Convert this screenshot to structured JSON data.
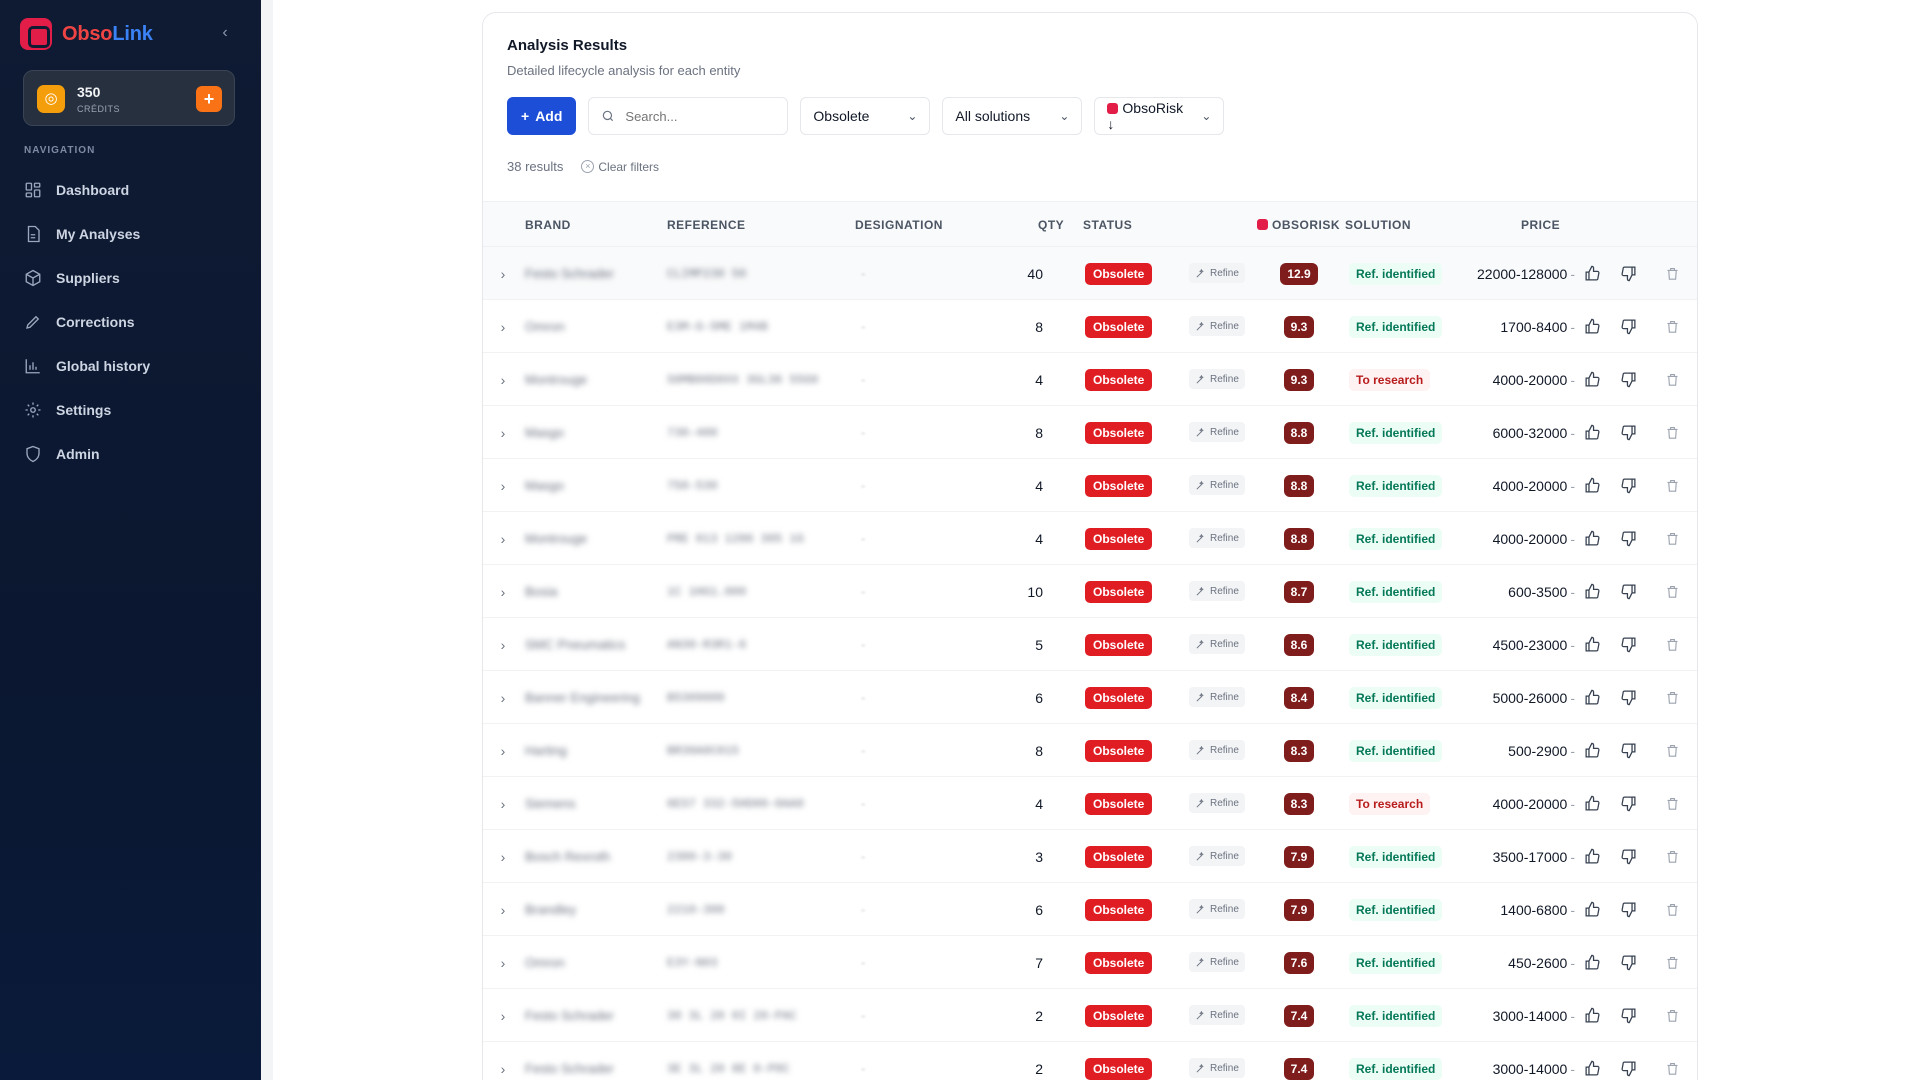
{
  "brand": {
    "part1": "Obso",
    "part2": "Link"
  },
  "credits": {
    "value": "350",
    "label": "CRÉDITS",
    "add_label": "+"
  },
  "nav": {
    "heading": "NAVIGATION",
    "items": [
      {
        "label": "Dashboard",
        "icon": "dashboard-icon"
      },
      {
        "label": "My Analyses",
        "icon": "document-icon"
      },
      {
        "label": "Suppliers",
        "icon": "box-icon"
      },
      {
        "label": "Corrections",
        "icon": "pencil-icon"
      },
      {
        "label": "Global history",
        "icon": "chart-icon"
      },
      {
        "label": "Settings",
        "icon": "gear-icon"
      },
      {
        "label": "Admin",
        "icon": "shield-icon"
      }
    ]
  },
  "card": {
    "title": "Analysis Results",
    "subtitle": "Detailed lifecycle analysis for each entity"
  },
  "toolbar": {
    "add_label": "Add",
    "search_placeholder": "Search...",
    "status_filter": "Obsolete",
    "solution_filter": "All solutions",
    "sort_label": "ObsoRisk ↓"
  },
  "results": {
    "count_text": "38 results",
    "clear_label": "Clear filters"
  },
  "table": {
    "headers": {
      "brand": "BRAND",
      "reference": "REFERENCE",
      "designation": "DESIGNATION",
      "qty": "QTY",
      "status": "STATUS",
      "obsorisk": "OBSORISK",
      "solution": "SOLUTION",
      "price": "PRICE"
    },
    "refine_label": "Refine",
    "rows": [
      {
        "brand": "Festo Schrader",
        "reference": "CLIMP230 50",
        "designation": "-",
        "qty": "40",
        "status": "Obsolete",
        "risk": "12.9",
        "solution": "Ref. identified",
        "solution_kind": "ok",
        "price": "22000-128000"
      },
      {
        "brand": "Omron",
        "reference": "E3M-G-5ME 1M4B",
        "designation": "-",
        "qty": "8",
        "status": "Obsolete",
        "risk": "9.3",
        "solution": "Ref. identified",
        "solution_kind": "ok",
        "price": "1700-8400"
      },
      {
        "brand": "Montrouge",
        "reference": "S0MB00D0XX 3GL36 55G9",
        "designation": "-",
        "qty": "4",
        "status": "Obsolete",
        "risk": "9.3",
        "solution": "To research",
        "solution_kind": "research",
        "price": "4000-20000"
      },
      {
        "brand": "Masgo",
        "reference": "730-400",
        "designation": "-",
        "qty": "8",
        "status": "Obsolete",
        "risk": "8.8",
        "solution": "Ref. identified",
        "solution_kind": "ok",
        "price": "6000-32000"
      },
      {
        "brand": "Masgo",
        "reference": "750-530",
        "designation": "-",
        "qty": "4",
        "status": "Obsolete",
        "risk": "8.8",
        "solution": "Ref. identified",
        "solution_kind": "ok",
        "price": "4000-20000"
      },
      {
        "brand": "Montrouge",
        "reference": "PRE 013 1286 305 1G",
        "designation": "-",
        "qty": "4",
        "status": "Obsolete",
        "risk": "8.8",
        "solution": "Ref. identified",
        "solution_kind": "ok",
        "price": "4000-20000"
      },
      {
        "brand": "Bosia",
        "reference": "1C 1HG1.000",
        "designation": "-",
        "qty": "10",
        "status": "Obsolete",
        "risk": "8.7",
        "solution": "Ref. identified",
        "solution_kind": "ok",
        "price": "600-3500"
      },
      {
        "brand": "SMC Pneumatics",
        "reference": "AN30-R3R1-6",
        "designation": "-",
        "qty": "5",
        "status": "Obsolete",
        "risk": "8.6",
        "solution": "Ref. identified",
        "solution_kind": "ok",
        "price": "4500-23000"
      },
      {
        "brand": "Banner Engineering",
        "reference": "B5309000",
        "designation": "-",
        "qty": "6",
        "status": "Obsolete",
        "risk": "8.4",
        "solution": "Ref. identified",
        "solution_kind": "ok",
        "price": "5000-26000"
      },
      {
        "brand": "Harting",
        "reference": "BR30A0C015",
        "designation": "-",
        "qty": "8",
        "status": "Obsolete",
        "risk": "8.3",
        "solution": "Ref. identified",
        "solution_kind": "ok",
        "price": "500-2900"
      },
      {
        "brand": "Siemens",
        "reference": "6ES7 332-5HD00-0AA0",
        "designation": "-",
        "qty": "4",
        "status": "Obsolete",
        "risk": "8.3",
        "solution": "To research",
        "solution_kind": "research",
        "price": "4000-20000"
      },
      {
        "brand": "Bosch Rexroth",
        "reference": "2300-3-30",
        "designation": "-",
        "qty": "3",
        "status": "Obsolete",
        "risk": "7.9",
        "solution": "Ref. identified",
        "solution_kind": "ok",
        "price": "3500-17000"
      },
      {
        "brand": "Brandley",
        "reference": "2210-300",
        "designation": "-",
        "qty": "6",
        "status": "Obsolete",
        "risk": "7.9",
        "solution": "Ref. identified",
        "solution_kind": "ok",
        "price": "1400-6800"
      },
      {
        "brand": "Omron",
        "reference": "E3Y-N03",
        "designation": "-",
        "qty": "7",
        "status": "Obsolete",
        "risk": "7.6",
        "solution": "Ref. identified",
        "solution_kind": "ok",
        "price": "450-2600"
      },
      {
        "brand": "Festo Schrader",
        "reference": "30 3L 20 0I 20-PAC",
        "designation": "-",
        "qty": "2",
        "status": "Obsolete",
        "risk": "7.4",
        "solution": "Ref. identified",
        "solution_kind": "ok",
        "price": "3000-14000"
      },
      {
        "brand": "Festo Schrader",
        "reference": "3E 3L 20 8E 0-P0C",
        "designation": "-",
        "qty": "2",
        "status": "Obsolete",
        "risk": "7.4",
        "solution": "Ref. identified",
        "solution_kind": "ok",
        "price": "3000-14000"
      }
    ]
  }
}
